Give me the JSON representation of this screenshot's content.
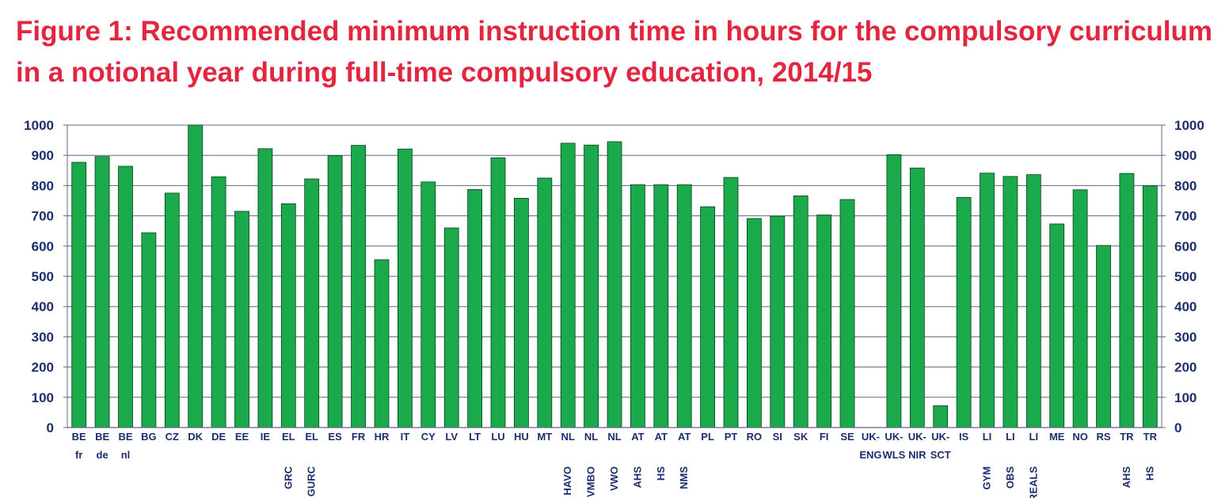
{
  "title": "Figure 1: Recommended minimum instruction time in hours for the compulsory curriculum in a notional year during full-time compulsory education, 2014/15",
  "colors": {
    "title": "#e3263f",
    "bar": "#1aaa4b",
    "bar_edge": "#0a3d1a",
    "axis_text": "#1c2e6b",
    "grid": "#5a6b84"
  },
  "chart_data": {
    "type": "bar",
    "title": "Figure 1: Recommended minimum instruction time in hours for the compulsory curriculum in a notional year during full-time compulsory education, 2014/15",
    "xlabel": "",
    "ylabel": "",
    "ylim": [
      0,
      1000
    ],
    "yticks": [
      0,
      100,
      200,
      300,
      400,
      500,
      600,
      700,
      800,
      900,
      1000
    ],
    "grid": true,
    "secondary_y_axis": true,
    "categories": [
      [
        "BE",
        "fr"
      ],
      [
        "BE",
        "de"
      ],
      [
        "BE",
        "nl"
      ],
      [
        "BG",
        ""
      ],
      [
        "CZ",
        ""
      ],
      [
        "DK",
        ""
      ],
      [
        "DE",
        ""
      ],
      [
        "EE",
        ""
      ],
      [
        "IE",
        ""
      ],
      [
        "EL",
        "",
        "GRC"
      ],
      [
        "EL",
        "",
        "GURC"
      ],
      [
        "ES",
        ""
      ],
      [
        "FR",
        ""
      ],
      [
        "HR",
        ""
      ],
      [
        "IT",
        ""
      ],
      [
        "CY",
        ""
      ],
      [
        "LV",
        ""
      ],
      [
        "LT",
        ""
      ],
      [
        "LU",
        ""
      ],
      [
        "HU",
        ""
      ],
      [
        "MT",
        ""
      ],
      [
        "NL",
        "",
        "HAVO"
      ],
      [
        "NL",
        "",
        "VMBO"
      ],
      [
        "NL",
        "",
        "VWO"
      ],
      [
        "AT",
        "",
        "AHS"
      ],
      [
        "AT",
        "",
        "HS"
      ],
      [
        "AT",
        "",
        "NMS"
      ],
      [
        "PL",
        ""
      ],
      [
        "PT",
        ""
      ],
      [
        "RO",
        ""
      ],
      [
        "SI",
        ""
      ],
      [
        "SK",
        ""
      ],
      [
        "FI",
        ""
      ],
      [
        "SE",
        ""
      ],
      [
        "UK-",
        "ENG"
      ],
      [
        "UK-",
        "WLS"
      ],
      [
        "UK-",
        "NIR"
      ],
      [
        "UK-",
        "SCT"
      ],
      [
        "IS",
        ""
      ],
      [
        "LI",
        "",
        "GYM"
      ],
      [
        "LI",
        "",
        "OBS"
      ],
      [
        "LI",
        "",
        "REALS"
      ],
      [
        "ME",
        ""
      ],
      [
        "NO",
        ""
      ],
      [
        "RS",
        ""
      ],
      [
        "TR",
        "",
        "AHS"
      ],
      [
        "TR",
        "",
        "HS"
      ]
    ],
    "values": [
      877,
      896,
      864,
      644,
      775,
      1000,
      829,
      715,
      922,
      740,
      822,
      899,
      933,
      555,
      921,
      812,
      660,
      787,
      892,
      758,
      825,
      940,
      934,
      945,
      803,
      803,
      803,
      730,
      827,
      691,
      699,
      766,
      703,
      754,
      null,
      902,
      858,
      72,
      761,
      841,
      830,
      836,
      673,
      786,
      602,
      840,
      799
    ]
  }
}
